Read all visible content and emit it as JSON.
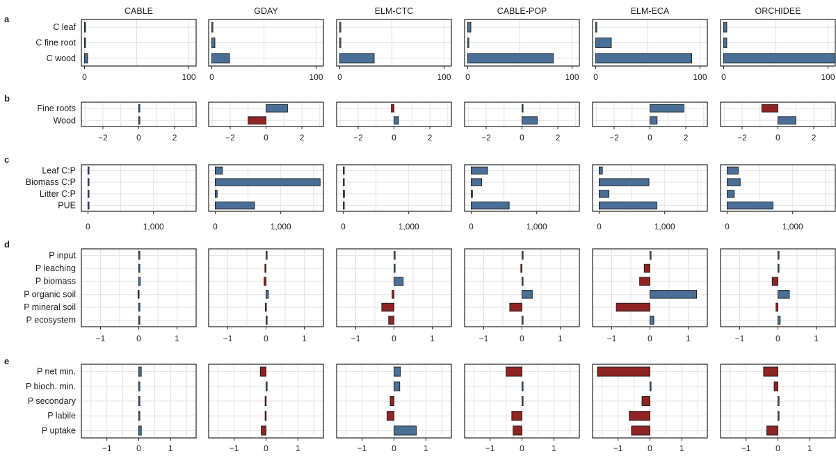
{
  "colors": {
    "positive": "#4a6f96",
    "negative": "#8e2424",
    "grid": "#e3e3e3",
    "frame": "#222222"
  },
  "models": [
    "CABLE",
    "GDAY",
    "ELM-CTC",
    "CABLE-POP",
    "ELM-ECA",
    "ORCHIDEE"
  ],
  "chart_data": [
    {
      "type": "bar",
      "orientation": "horizontal",
      "panel": "a",
      "rows": [
        "C leaf",
        "C fine root",
        "C wood"
      ],
      "xlim": [
        -3,
        107
      ],
      "ticks": [
        0,
        100
      ],
      "tick_labels": [
        "0",
        "100"
      ],
      "series": [
        {
          "model": "CABLE",
          "values": [
            0.3,
            0.5,
            3
          ]
        },
        {
          "model": "GDAY",
          "values": [
            0.5,
            3,
            17
          ]
        },
        {
          "model": "ELM-CTC",
          "values": [
            0.4,
            0.5,
            33
          ]
        },
        {
          "model": "CABLE-POP",
          "values": [
            3,
            0.8,
            82
          ]
        },
        {
          "model": "ELM-ECA",
          "values": [
            0.5,
            15,
            92
          ]
        },
        {
          "model": "ORCHIDEE",
          "values": [
            3,
            3,
            107
          ]
        }
      ]
    },
    {
      "type": "bar",
      "orientation": "horizontal",
      "panel": "b",
      "rows": [
        "Fine roots",
        "Wood"
      ],
      "xlim": [
        -3.2,
        3.2
      ],
      "ticks": [
        -2,
        0,
        2
      ],
      "tick_labels": [
        "−2",
        "0",
        "2"
      ],
      "series": [
        {
          "model": "CABLE",
          "values": [
            0.0,
            0.0
          ]
        },
        {
          "model": "GDAY",
          "values": [
            1.2,
            -1.0
          ]
        },
        {
          "model": "ELM-CTC",
          "values": [
            -0.15,
            0.25
          ]
        },
        {
          "model": "CABLE-POP",
          "values": [
            0.0,
            0.85
          ]
        },
        {
          "model": "ELM-ECA",
          "values": [
            1.9,
            0.4
          ]
        },
        {
          "model": "ORCHIDEE",
          "values": [
            -0.9,
            1.0
          ]
        }
      ]
    },
    {
      "type": "bar",
      "orientation": "horizontal",
      "panel": "c",
      "rows": [
        "Leaf C:P",
        "Biomass C:P",
        "Litter C:P",
        "PUE"
      ],
      "xlim": [
        -100,
        1650
      ],
      "ticks": [
        0,
        1000
      ],
      "tick_labels": [
        "0",
        "1,000"
      ],
      "series": [
        {
          "model": "CABLE",
          "values": [
            5,
            5,
            5,
            5
          ]
        },
        {
          "model": "GDAY",
          "values": [
            110,
            1600,
            30,
            600
          ]
        },
        {
          "model": "ELM-CTC",
          "values": [
            5,
            5,
            20,
            5
          ]
        },
        {
          "model": "CABLE-POP",
          "values": [
            250,
            160,
            20,
            580
          ]
        },
        {
          "model": "ELM-ECA",
          "values": [
            50,
            760,
            150,
            880
          ]
        },
        {
          "model": "ORCHIDEE",
          "values": [
            170,
            200,
            110,
            700
          ]
        }
      ]
    },
    {
      "type": "bar",
      "orientation": "horizontal",
      "panel": "d",
      "rows": [
        "P input",
        "P leaching",
        "P biomass",
        "P organic soil",
        "P mineral soil",
        "P ecosystem"
      ],
      "xlim": [
        -1.5,
        1.5
      ],
      "ticks": [
        -1,
        0,
        1
      ],
      "tick_labels": [
        "−1",
        "0",
        "1"
      ],
      "series": [
        {
          "model": "CABLE",
          "values": [
            0.0,
            0.02,
            0.04,
            -0.02,
            0.02,
            0.02
          ]
        },
        {
          "model": "GDAY",
          "values": [
            0.0,
            -0.03,
            -0.05,
            0.06,
            -0.02,
            0.02
          ]
        },
        {
          "model": "ELM-CTC",
          "values": [
            0.0,
            0.0,
            0.24,
            -0.05,
            -0.32,
            -0.14
          ]
        },
        {
          "model": "CABLE-POP",
          "values": [
            0.0,
            -0.03,
            0.0,
            0.27,
            -0.32,
            0.02
          ]
        },
        {
          "model": "ELM-ECA",
          "values": [
            0.0,
            -0.15,
            -0.27,
            1.22,
            -0.88,
            0.1
          ]
        },
        {
          "model": "ORCHIDEE",
          "values": [
            0.0,
            0.0,
            -0.15,
            0.3,
            -0.05,
            0.06
          ]
        }
      ]
    },
    {
      "type": "bar",
      "orientation": "horizontal",
      "panel": "e",
      "rows": [
        "P net min.",
        "P bioch. min.",
        "P secondary",
        "P labile",
        "P uptake"
      ],
      "xlim": [
        -1.8,
        1.8
      ],
      "ticks": [
        -1,
        0,
        1
      ],
      "tick_labels": [
        "−1",
        "0",
        "1"
      ],
      "series": [
        {
          "model": "CABLE",
          "values": [
            0.08,
            0.0,
            0.02,
            0.02,
            0.08
          ]
        },
        {
          "model": "GDAY",
          "values": [
            -0.18,
            0.0,
            -0.03,
            -0.03,
            -0.15
          ]
        },
        {
          "model": "ELM-CTC",
          "values": [
            0.2,
            0.18,
            -0.12,
            -0.22,
            0.7
          ]
        },
        {
          "model": "CABLE-POP",
          "values": [
            -0.5,
            0.0,
            0.0,
            -0.32,
            -0.28
          ]
        },
        {
          "model": "ELM-ECA",
          "values": [
            -1.65,
            0.0,
            -0.25,
            -0.65,
            -0.58
          ]
        },
        {
          "model": "ORCHIDEE",
          "values": [
            -0.45,
            -0.12,
            0.0,
            0.0,
            -0.35
          ]
        }
      ]
    }
  ]
}
